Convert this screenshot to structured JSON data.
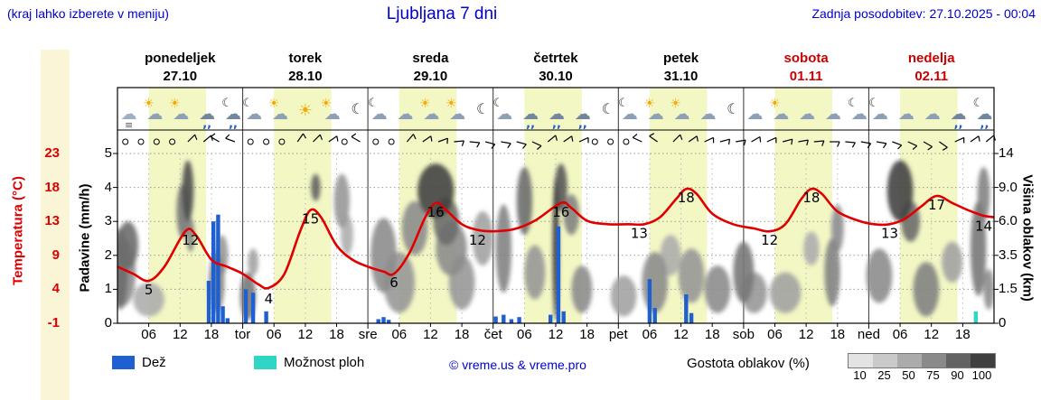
{
  "header": {
    "hint": "(kraj lahko izberete v meniju)",
    "title": "Ljubljana 7 dni",
    "updated": "Zadnja posodobitev: 27.10.2025 - 00:04"
  },
  "days": [
    {
      "name": "ponedeljek",
      "date": "27.10",
      "weekend": false
    },
    {
      "name": "torek",
      "date": "28.10",
      "weekend": false
    },
    {
      "name": "sreda",
      "date": "29.10",
      "weekend": false
    },
    {
      "name": "četrtek",
      "date": "30.10",
      "weekend": false
    },
    {
      "name": "petek",
      "date": "31.10",
      "weekend": false
    },
    {
      "name": "sobota",
      "date": "01.11",
      "weekend": true
    },
    {
      "name": "nedelja",
      "date": "02.11",
      "weekend": true
    }
  ],
  "axes": {
    "temp_label": "Temperatura (°C)",
    "temp_ticks": [
      "23",
      "18",
      "13",
      "9",
      "4",
      "-1"
    ],
    "precip_label": "Padavine (mm/h)",
    "precip_ticks": [
      "5",
      "4",
      "3",
      "2",
      "1",
      "0"
    ],
    "cloud_label": "Višina oblakov (km)",
    "cloud_ticks": [
      "14",
      "9.0",
      "6.0",
      "3.5",
      "1.5",
      "0"
    ],
    "x_ticks": [
      "06",
      "12",
      "18",
      "tor",
      "06",
      "12",
      "18",
      "sre",
      "06",
      "12",
      "18",
      "čet",
      "06",
      "12",
      "18",
      "pet",
      "06",
      "12",
      "18",
      "sob",
      "06",
      "12",
      "18",
      "ned",
      "06",
      "12",
      "18"
    ]
  },
  "legend": {
    "rain": "Dež",
    "showers": "Možnost ploh",
    "credit": "© vreme.us & vreme.pro",
    "cloud_density": "Gostota oblakov (%)",
    "cloud_scale": [
      "10",
      "25",
      "50",
      "75",
      "90",
      "100"
    ]
  },
  "colors": {
    "accent_blue": "#0000cd",
    "weekend": "#cc0000",
    "temperature": "#e00000",
    "rain": "#1f5fd0",
    "shower": "#2fd5c5",
    "day_band": "#f3f7c4",
    "axis_strip": "#fbf5d8",
    "cloud_scale": [
      "#e3e3e3",
      "#c9c9c9",
      "#ababab",
      "#8a8a8a",
      "#636363",
      "#3f3f3f"
    ]
  },
  "chart_data": {
    "type": "line",
    "title": "Ljubljana 7 dni",
    "x_axis": {
      "unit": "hours from Mon 00:00",
      "range": [
        0,
        168
      ],
      "days": 7
    },
    "day_bands": {
      "start_hour": 6,
      "end_hour": 17
    },
    "temperature": {
      "unit": "°C",
      "axis_range": [
        -1,
        23
      ],
      "points": [
        [
          0,
          7
        ],
        [
          3,
          6
        ],
        [
          6,
          5
        ],
        [
          9,
          7
        ],
        [
          13,
          12
        ],
        [
          15,
          11.5
        ],
        [
          18,
          8
        ],
        [
          21,
          7
        ],
        [
          24,
          6
        ],
        [
          27,
          4.5
        ],
        [
          29,
          4
        ],
        [
          32,
          6
        ],
        [
          35,
          12
        ],
        [
          37,
          15
        ],
        [
          39,
          14
        ],
        [
          42,
          10
        ],
        [
          45,
          8
        ],
        [
          48,
          7
        ],
        [
          51,
          6.3
        ],
        [
          53,
          6
        ],
        [
          56,
          9
        ],
        [
          59,
          14
        ],
        [
          61,
          16
        ],
        [
          63,
          15
        ],
        [
          66,
          13
        ],
        [
          69,
          12.2
        ],
        [
          72,
          12
        ],
        [
          76,
          12.3
        ],
        [
          80,
          13.5
        ],
        [
          85,
          16
        ],
        [
          87,
          15.3
        ],
        [
          90,
          13.5
        ],
        [
          94,
          13
        ],
        [
          98,
          13
        ],
        [
          101,
          13
        ],
        [
          104,
          14
        ],
        [
          107,
          16.5
        ],
        [
          109,
          18
        ],
        [
          111,
          17.3
        ],
        [
          114,
          14.5
        ],
        [
          118,
          13
        ],
        [
          122,
          12.4
        ],
        [
          125,
          12
        ],
        [
          128,
          13
        ],
        [
          131,
          16.5
        ],
        [
          133,
          18
        ],
        [
          135,
          17.3
        ],
        [
          138,
          14.8
        ],
        [
          142,
          13.5
        ],
        [
          145,
          13
        ],
        [
          148,
          13
        ],
        [
          151,
          13.8
        ],
        [
          154,
          15.5
        ],
        [
          157,
          17
        ],
        [
          160,
          16
        ],
        [
          163,
          15
        ],
        [
          166,
          14.2
        ],
        [
          168,
          14
        ]
      ],
      "labels": [
        {
          "h": 6,
          "v": 5,
          "text": "5",
          "dy": 15
        },
        {
          "h": 14,
          "v": 12,
          "text": "12",
          "dy": 15
        },
        {
          "h": 29,
          "v": 4,
          "text": "4",
          "dy": 17
        },
        {
          "h": 37,
          "v": 15,
          "text": "15",
          "dy": 15
        },
        {
          "h": 53,
          "v": 6,
          "text": "6",
          "dy": 15
        },
        {
          "h": 61,
          "v": 16,
          "text": "16",
          "dy": 15
        },
        {
          "h": 69,
          "v": 12,
          "text": "12",
          "dy": 15
        },
        {
          "h": 85,
          "v": 16,
          "text": "16",
          "dy": 15
        },
        {
          "h": 100,
          "v": 13,
          "text": "13",
          "dy": 15
        },
        {
          "h": 109,
          "v": 18,
          "text": "18",
          "dy": 15
        },
        {
          "h": 125,
          "v": 12,
          "text": "12",
          "dy": 15
        },
        {
          "h": 133,
          "v": 18,
          "text": "18",
          "dy": 15
        },
        {
          "h": 148,
          "v": 13,
          "text": "13",
          "dy": 15
        },
        {
          "h": 157,
          "v": 17,
          "text": "17",
          "dy": 15
        },
        {
          "h": 166,
          "v": 14,
          "text": "14",
          "dy": 15
        }
      ]
    },
    "precipitation": {
      "unit": "mm/h",
      "axis_range": [
        0,
        5
      ],
      "bars": [
        [
          17.5,
          1.25,
          "rain"
        ],
        [
          18.4,
          3.0,
          "rain"
        ],
        [
          19.3,
          3.2,
          "rain"
        ],
        [
          20.2,
          0.5,
          "rain"
        ],
        [
          21.1,
          0.15,
          "rain"
        ],
        [
          24.6,
          1.0,
          "rain"
        ],
        [
          26.0,
          0.9,
          "rain"
        ],
        [
          28.5,
          0.35,
          "rain"
        ],
        [
          50,
          0.12,
          "rain"
        ],
        [
          51,
          0.18,
          "rain"
        ],
        [
          52,
          0.1,
          "rain"
        ],
        [
          72.5,
          0.2,
          "rain"
        ],
        [
          74,
          0.25,
          "rain"
        ],
        [
          75.5,
          0.12,
          "rain"
        ],
        [
          77,
          0.18,
          "rain"
        ],
        [
          83,
          0.25,
          "rain"
        ],
        [
          84.5,
          2.85,
          "rain"
        ],
        [
          85.5,
          0.35,
          "rain"
        ],
        [
          102,
          1.3,
          "rain"
        ],
        [
          103,
          0.45,
          "rain"
        ],
        [
          109,
          0.85,
          "rain"
        ],
        [
          110,
          0.3,
          "rain"
        ],
        [
          164.5,
          0.35,
          "shower"
        ]
      ]
    },
    "cloud_height_axis": {
      "unit": "km",
      "tick_values": [
        0,
        1.5,
        3.5,
        6.0,
        9.0,
        14
      ]
    },
    "clouds": [
      [
        0.5,
        1.5,
        1.6,
        1.2,
        0.6
      ],
      [
        1,
        2.5,
        1.5,
        1.0,
        0.45
      ],
      [
        2,
        2,
        2.3,
        0.7,
        0.6
      ],
      [
        6,
        3,
        0.7,
        0.5,
        0.3
      ],
      [
        12.5,
        1.2,
        3.3,
        0.8,
        0.55
      ],
      [
        13.5,
        1.1,
        3.9,
        0.9,
        0.75
      ],
      [
        14,
        0.8,
        2.6,
        0.5,
        0.5
      ],
      [
        19,
        1.5,
        1.2,
        0.9,
        0.5
      ],
      [
        20,
        1.2,
        2.0,
        0.6,
        0.4
      ],
      [
        25,
        1.5,
        0.8,
        0.7,
        0.55
      ],
      [
        26,
        1,
        1.8,
        0.4,
        0.35
      ],
      [
        38,
        0.9,
        4.0,
        0.4,
        0.65
      ],
      [
        43,
        1.5,
        3.6,
        0.8,
        0.4
      ],
      [
        44,
        1.2,
        2.6,
        0.6,
        0.3
      ],
      [
        51,
        2.5,
        2.0,
        1.1,
        0.45
      ],
      [
        54,
        3,
        1.2,
        0.9,
        0.4
      ],
      [
        57,
        2.5,
        2.8,
        0.8,
        0.45
      ],
      [
        61,
        3.5,
        3.9,
        0.8,
        0.8
      ],
      [
        63,
        2.5,
        3.0,
        0.7,
        0.6
      ],
      [
        64,
        3,
        2.2,
        0.8,
        0.45
      ],
      [
        66,
        2.5,
        1.2,
        0.8,
        0.4
      ],
      [
        70,
        2,
        2.5,
        0.8,
        0.35
      ],
      [
        74,
        1.5,
        2.2,
        1.3,
        0.5
      ],
      [
        78,
        1.5,
        3.6,
        1.0,
        0.6
      ],
      [
        80,
        2,
        1.5,
        0.8,
        0.4
      ],
      [
        84,
        0.6,
        2.2,
        2.1,
        0.85
      ],
      [
        85,
        1.2,
        4.0,
        0.7,
        0.7
      ],
      [
        87,
        1.5,
        3.2,
        0.6,
        0.5
      ],
      [
        89,
        2,
        1.0,
        0.7,
        0.45
      ],
      [
        97,
        2.5,
        0.8,
        0.6,
        0.35
      ],
      [
        103,
        2.5,
        1.2,
        0.9,
        0.45
      ],
      [
        106,
        2,
        2.0,
        0.6,
        0.3
      ],
      [
        110,
        2.5,
        1.4,
        0.8,
        0.4
      ],
      [
        115,
        2.5,
        1.0,
        0.7,
        0.45
      ],
      [
        120,
        2,
        1.5,
        0.9,
        0.55
      ],
      [
        122,
        2.5,
        0.9,
        0.6,
        0.4
      ],
      [
        128,
        3,
        0.9,
        0.6,
        0.35
      ],
      [
        133,
        1.5,
        2.2,
        0.5,
        0.3
      ],
      [
        137,
        1.5,
        1.5,
        1.0,
        0.5
      ],
      [
        138,
        1.2,
        2.8,
        0.7,
        0.45
      ],
      [
        146,
        2.5,
        1.4,
        0.8,
        0.45
      ],
      [
        150,
        2.5,
        3.9,
        0.9,
        0.8
      ],
      [
        152,
        1.8,
        3.0,
        0.6,
        0.6
      ],
      [
        155,
        2.5,
        1.0,
        0.8,
        0.5
      ],
      [
        160,
        2,
        1.8,
        0.6,
        0.35
      ],
      [
        165,
        1.5,
        2.2,
        1.4,
        0.55
      ],
      [
        166,
        1.2,
        3.8,
        0.8,
        0.5
      ],
      [
        167,
        1,
        1.0,
        0.6,
        0.45
      ]
    ],
    "icons": [
      {
        "h": 2,
        "type": "fog"
      },
      {
        "h": 7,
        "type": "suncloud"
      },
      {
        "h": 12,
        "type": "suncloud"
      },
      {
        "h": 17,
        "type": "rain"
      },
      {
        "h": 22,
        "type": "moonrain"
      },
      {
        "h": 26,
        "type": "mooncloud"
      },
      {
        "h": 31,
        "type": "suncloud"
      },
      {
        "h": 36,
        "type": "sun"
      },
      {
        "h": 41,
        "type": "suncloud"
      },
      {
        "h": 46,
        "type": "moon"
      },
      {
        "h": 50,
        "type": "mooncloud"
      },
      {
        "h": 55,
        "type": "cloud"
      },
      {
        "h": 60,
        "type": "suncloud"
      },
      {
        "h": 65,
        "type": "suncloud"
      },
      {
        "h": 70,
        "type": "moon"
      },
      {
        "h": 74,
        "type": "mooncloud"
      },
      {
        "h": 79,
        "type": "rain"
      },
      {
        "h": 84,
        "type": "rain"
      },
      {
        "h": 89,
        "type": "rain"
      },
      {
        "h": 94,
        "type": "moon"
      },
      {
        "h": 98,
        "type": "mooncloud"
      },
      {
        "h": 103,
        "type": "suncloud"
      },
      {
        "h": 108,
        "type": "suncloud"
      },
      {
        "h": 113,
        "type": "cloud"
      },
      {
        "h": 118,
        "type": "moon"
      },
      {
        "h": 122,
        "type": "cloud"
      },
      {
        "h": 127,
        "type": "suncloud"
      },
      {
        "h": 132,
        "type": "cloud"
      },
      {
        "h": 137,
        "type": "cloud"
      },
      {
        "h": 142,
        "type": "mooncloud"
      },
      {
        "h": 146,
        "type": "mooncloud"
      },
      {
        "h": 151,
        "type": "cloud"
      },
      {
        "h": 156,
        "type": "cloud"
      },
      {
        "h": 161,
        "type": "rain"
      },
      {
        "h": 166,
        "type": "moonrain"
      }
    ],
    "wind": [
      "o",
      "o",
      "o",
      "o",
      45,
      50,
      300,
      290,
      "o",
      "o",
      "o",
      35,
      45,
      55,
      "o",
      300,
      "o",
      "o",
      40,
      55,
      70,
      85,
      95,
      105,
      100,
      105,
      115,
      50,
      55,
      65,
      "o",
      "o",
      "o",
      295,
      305,
      45,
      55,
      65,
      75,
      80,
      60,
      65,
      75,
      80,
      85,
      90,
      95,
      100,
      100,
      110,
      115,
      120,
      125,
      65,
      55,
      50
    ]
  }
}
